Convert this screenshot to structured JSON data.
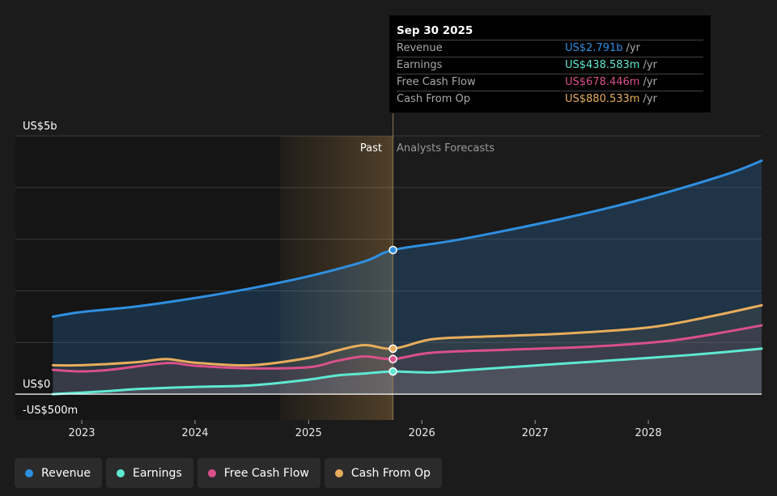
{
  "chart_data": {
    "type": "area",
    "y_axis_labels": {
      "top": "US$5b",
      "zero": "US$0",
      "bottom": "-US$500m"
    },
    "ylim": [
      -500,
      5000
    ],
    "y_unit": "US$m",
    "x_ticks": [
      "2023",
      "2024",
      "2025",
      "2026",
      "2027",
      "2028"
    ],
    "xlim": [
      "2022-06-01",
      "2028-12-31"
    ],
    "regions": {
      "past_label": "Past",
      "forecast_label": "Analysts Forecasts",
      "past_highlight_start": "2024-09-30",
      "divider": "2025-09-30"
    },
    "grid": true,
    "series": [
      {
        "name": "Revenue",
        "color": "#2f8fe0",
        "points": [
          [
            "2022-09-30",
            1500
          ],
          [
            "2022-12-31",
            1590
          ],
          [
            "2023-06-30",
            1700
          ],
          [
            "2023-12-31",
            1860
          ],
          [
            "2024-06-30",
            2050
          ],
          [
            "2024-12-31",
            2280
          ],
          [
            "2025-06-30",
            2570
          ],
          [
            "2025-09-30",
            2791
          ],
          [
            "2026-03-31",
            2960
          ],
          [
            "2026-09-30",
            3170
          ],
          [
            "2027-03-31",
            3400
          ],
          [
            "2027-09-30",
            3660
          ],
          [
            "2028-03-31",
            3960
          ],
          [
            "2028-09-30",
            4300
          ],
          [
            "2028-12-31",
            4520
          ]
        ]
      },
      {
        "name": "Earnings",
        "color": "#5ee8d2",
        "points": [
          [
            "2022-09-30",
            0
          ],
          [
            "2022-12-31",
            30
          ],
          [
            "2023-03-31",
            60
          ],
          [
            "2023-06-30",
            100
          ],
          [
            "2023-12-31",
            140
          ],
          [
            "2024-06-30",
            170
          ],
          [
            "2024-12-31",
            280
          ],
          [
            "2025-03-31",
            360
          ],
          [
            "2025-06-30",
            400
          ],
          [
            "2025-09-30",
            438.583
          ],
          [
            "2026-01-31",
            420
          ],
          [
            "2026-06-30",
            480
          ],
          [
            "2027-03-31",
            590
          ],
          [
            "2027-12-31",
            700
          ],
          [
            "2028-06-30",
            780
          ],
          [
            "2028-12-31",
            880
          ]
        ]
      },
      {
        "name": "Free Cash Flow",
        "color": "#d9508a",
        "points": [
          [
            "2022-09-30",
            470
          ],
          [
            "2022-12-31",
            440
          ],
          [
            "2023-03-31",
            470
          ],
          [
            "2023-09-30",
            600
          ],
          [
            "2023-12-31",
            550
          ],
          [
            "2024-06-30",
            500
          ],
          [
            "2024-12-31",
            520
          ],
          [
            "2025-03-31",
            640
          ],
          [
            "2025-06-30",
            730
          ],
          [
            "2025-09-30",
            678.446
          ],
          [
            "2026-01-31",
            800
          ],
          [
            "2026-09-30",
            860
          ],
          [
            "2027-06-30",
            920
          ],
          [
            "2028-03-31",
            1050
          ],
          [
            "2028-12-31",
            1330
          ]
        ]
      },
      {
        "name": "Cash From Op",
        "color": "#e8ad5c",
        "points": [
          [
            "2022-09-30",
            560
          ],
          [
            "2022-12-31",
            560
          ],
          [
            "2023-06-30",
            620
          ],
          [
            "2023-09-30",
            680
          ],
          [
            "2023-12-31",
            610
          ],
          [
            "2024-06-30",
            560
          ],
          [
            "2024-12-31",
            700
          ],
          [
            "2025-03-31",
            840
          ],
          [
            "2025-06-30",
            950
          ],
          [
            "2025-09-30",
            880.533
          ],
          [
            "2026-01-31",
            1060
          ],
          [
            "2026-06-30",
            1110
          ],
          [
            "2027-03-31",
            1170
          ],
          [
            "2027-12-31",
            1290
          ],
          [
            "2028-06-30",
            1480
          ],
          [
            "2028-12-31",
            1720
          ]
        ]
      }
    ]
  },
  "tooltip": {
    "date": "Sep 30 2025",
    "rows": [
      {
        "name": "Revenue",
        "value": "US$2.791b",
        "unit": "/yr",
        "color": "#2f8fe0"
      },
      {
        "name": "Earnings",
        "value": "US$438.583m",
        "unit": "/yr",
        "color": "#5ee8d2"
      },
      {
        "name": "Free Cash Flow",
        "value": "US$678.446m",
        "unit": "/yr",
        "color": "#d9508a"
      },
      {
        "name": "Cash From Op",
        "value": "US$880.533m",
        "unit": "/yr",
        "color": "#e8ad5c"
      }
    ]
  },
  "legend": [
    {
      "label": "Revenue",
      "color": "#2f8fe0"
    },
    {
      "label": "Earnings",
      "color": "#5ee8d2"
    },
    {
      "label": "Free Cash Flow",
      "color": "#d9508a"
    },
    {
      "label": "Cash From Op",
      "color": "#e8ad5c"
    }
  ]
}
